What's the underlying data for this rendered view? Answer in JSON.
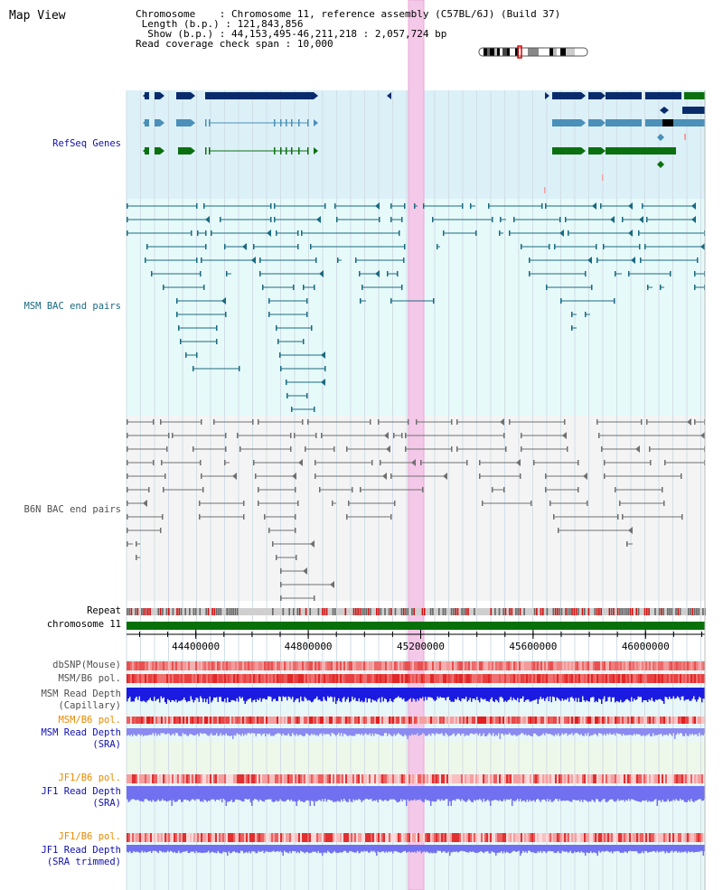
{
  "title": "Map View",
  "header": {
    "chromosome_label": "Chromosome",
    "chromosome_value": "Chromosome 11, reference assembly (C57BL/6J) (Build 37)",
    "length_label": "Length (b.p.)",
    "length_value": "121,843,856",
    "show_label": "Show (b.p.)",
    "show_value": "44,153,495-46,211,218 : 2,057,724 bp",
    "coverage_label": "Read coverage check span",
    "coverage_value": "10,000"
  },
  "tracks": {
    "refseq": "RefSeq Genes",
    "msm_bac": "MSM BAC end pairs",
    "b6n_bac": "B6N BAC end pairs",
    "repeat": "Repeat",
    "chromosome": "chromosome 11",
    "dbsnp": "dbSNP(Mouse)",
    "msm_b6_pol": "MSM/B6 pol.",
    "msm_depth_cap_1": "MSM Read Depth",
    "msm_depth_cap_2": "(Capillary)",
    "msm_b6_pol_sra": "MSM/B6 pol.",
    "msm_depth_sra_1": "MSM Read Depth",
    "msm_depth_sra_2": "(SRA)",
    "jf1_b6_pol": "JF1/B6 pol.",
    "jf1_depth_1": "JF1 Read Depth",
    "jf1_depth_2": "(SRA)",
    "jf1_b6_pol_2": "JF1/B6 pol.",
    "jf1_depth_trim_1": "JF1 Read Depth",
    "jf1_depth_trim_2": "(SRA trimmed)"
  },
  "axis": {
    "ticks": [
      "44400000",
      "44800000",
      "45200000",
      "45600000",
      "46000000"
    ],
    "tick_values": [
      44400000,
      44800000,
      45200000,
      45600000,
      46000000
    ],
    "start": 44153495,
    "end": 46211218
  },
  "colors": {
    "refseq_bg": "#dcf0f8",
    "msm_bg": "#e6fafa",
    "b6n_bg": "#f4f4f4",
    "refseq_dark": "#0a2b6b",
    "refseq_mid": "#4a90b8",
    "refseq_green": "#0a7010",
    "msm_pair": "#1a6a80",
    "b6n_pair": "#707070",
    "chromosome_bar": "#087008",
    "highlight": "#f4c8e8",
    "depth_blue": "#1a1ae0",
    "depth_light_blue": "#7070f0",
    "msm_label": "#1a6a80",
    "gray_label": "#505050",
    "orange_label": "#e88a00",
    "blue_label": "#1010b0"
  }
}
